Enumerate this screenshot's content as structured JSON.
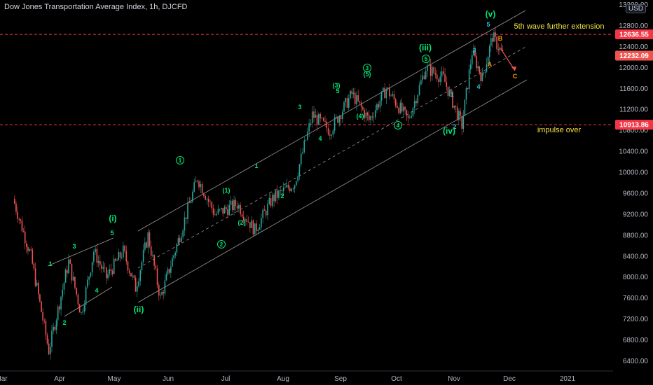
{
  "header": {
    "title": "Dow Jones Transportation Average Index, 1h, DJCFD",
    "currency_button": "USD"
  },
  "chart_data": {
    "type": "candlestick",
    "title": "Dow Jones Transportation Average Index, 1h, DJCFD",
    "y_ticks": [
      6400,
      6800,
      7200,
      7600,
      8000,
      8400,
      8800,
      9200,
      9600,
      10000,
      10400,
      10800,
      11200,
      11600,
      12000,
      12400,
      12800,
      13200
    ],
    "x_ticks": [
      "Mar",
      "Apr",
      "May",
      "Jun",
      "Jul",
      "Aug",
      "Sep",
      "Oct",
      "Nov",
      "Dec",
      "2021"
    ],
    "ylim": [
      6250,
      13250
    ],
    "price_levels": [
      {
        "value": "12636.55",
        "style": "dashed-red",
        "label": "5th wave further extension"
      },
      {
        "value": "10913.86",
        "style": "dashed-red",
        "label": "impulse over"
      }
    ],
    "last_price": "12232.09",
    "price_path": [
      [
        "Mar",
        9500
      ],
      [
        "Mar",
        8400
      ],
      [
        "Mar",
        6600
      ],
      [
        "Apr",
        8300
      ],
      [
        "Apr",
        7300
      ],
      [
        "Apr",
        8500
      ],
      [
        "Apr",
        8000
      ],
      [
        "May",
        8500
      ],
      [
        "May",
        7800
      ],
      [
        "May",
        8800
      ],
      [
        "May",
        7600
      ],
      [
        "Jun",
        8800
      ],
      [
        "Jun",
        9900
      ],
      [
        "Jun",
        9200
      ],
      [
        "Jul",
        9400
      ],
      [
        "Jul",
        8900
      ],
      [
        "Jul",
        9500
      ],
      [
        "Aug",
        9800
      ],
      [
        "Aug",
        11100
      ],
      [
        "Aug",
        10800
      ],
      [
        "Sep",
        11500
      ],
      [
        "Sep",
        11000
      ],
      [
        "Sep",
        11600
      ],
      [
        "Oct",
        11000
      ],
      [
        "Oct",
        12000
      ],
      [
        "Oct",
        11800
      ],
      [
        "Nov",
        10900
      ],
      [
        "Nov",
        12300
      ],
      [
        "Nov",
        11800
      ],
      [
        "Nov",
        12600
      ],
      [
        "Nov",
        12250
      ]
    ],
    "wave_labels": [
      {
        "text": "(i)",
        "color": "#00e676"
      },
      {
        "text": "(ii)",
        "color": "#00e676"
      },
      {
        "text": "(iii)",
        "color": "#00e676"
      },
      {
        "text": "(iv)",
        "color": "#00e676"
      },
      {
        "text": "(v)",
        "color": "#00e676"
      },
      {
        "text": "1",
        "color": "#00e676"
      },
      {
        "text": "2",
        "color": "#00e676"
      },
      {
        "text": "3",
        "color": "#00e676"
      },
      {
        "text": "4",
        "color": "#00e676"
      },
      {
        "text": "5",
        "color": "#00e676"
      },
      {
        "text": "(1)",
        "color": "#00e676"
      },
      {
        "text": "(2)",
        "color": "#00e676"
      },
      {
        "text": "(3)",
        "color": "#00e676"
      },
      {
        "text": "(4)",
        "color": "#00e676"
      },
      {
        "text": "(5)",
        "color": "#00e676"
      },
      {
        "text": "A",
        "color": "#ff9800"
      },
      {
        "text": "B",
        "color": "#ff9800"
      },
      {
        "text": "C",
        "color": "#ff9800"
      }
    ],
    "colors": {
      "up": "#26a69a",
      "down": "#ef5350",
      "wave": "#00e676",
      "correction": "#ff9800",
      "level": "#f23645",
      "note": "#f0e040",
      "channel": "#9a9a9a",
      "sub_wave": "#26c6da"
    }
  }
}
